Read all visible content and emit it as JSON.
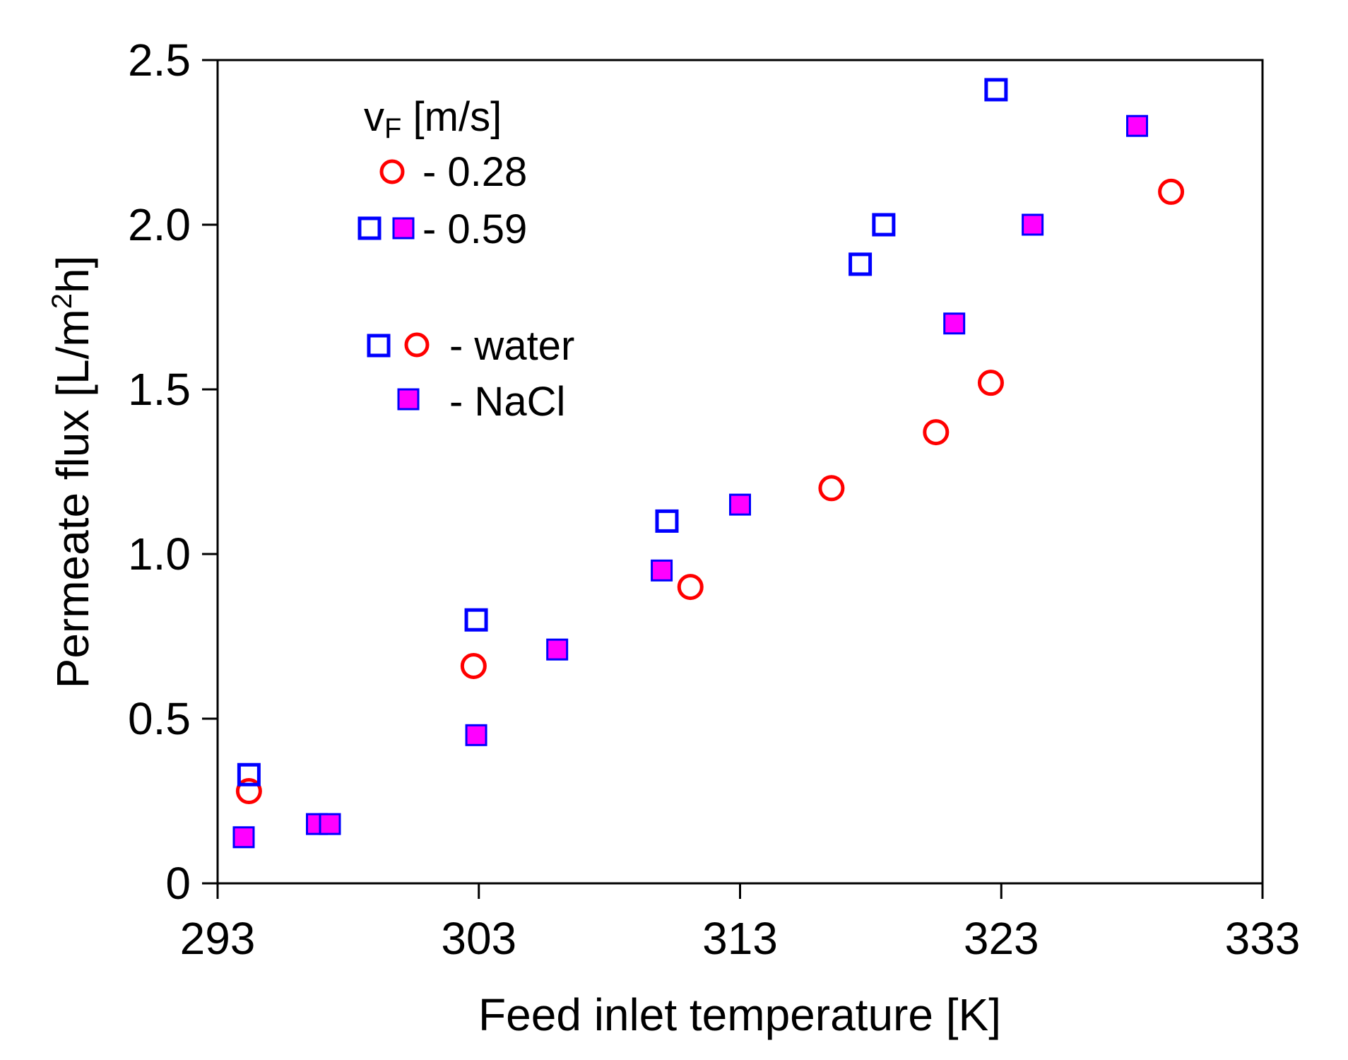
{
  "chart_data": {
    "type": "scatter",
    "xlabel": "Feed inlet temperature [K]",
    "ylabel_main": "Permeate flux [L/m",
    "ylabel_sup": "2",
    "ylabel_tail": "h]",
    "xlim": [
      293,
      333
    ],
    "ylim": [
      0,
      2.5
    ],
    "xticks": [
      293,
      303,
      313,
      323,
      333
    ],
    "xtick_labels": [
      "293",
      "303",
      "313",
      "323",
      "333"
    ],
    "yticks": [
      0,
      0.5,
      1.0,
      1.5,
      2.0,
      2.5
    ],
    "ytick_labels": [
      "0",
      "0.5",
      "1.0",
      "1.5",
      "2.0",
      "2.5"
    ],
    "legend": {
      "title_main": "v",
      "title_sub": "F",
      "title_tail": " [m/s]",
      "vel_028": "- 0.28",
      "vel_059": "- 0.59",
      "water": "- water",
      "nacl": "- NaCl"
    },
    "colors": {
      "red": "#ff0000",
      "blue": "#0000ff",
      "magenta": "#ff00ff"
    },
    "series": [
      {
        "name": "water, 0.28 m/s",
        "marker": "circle-open-red",
        "x": [
          294.2,
          302.8,
          311.1,
          316.5,
          320.5,
          322.6,
          329.5
        ],
        "y": [
          0.28,
          0.66,
          0.9,
          1.2,
          1.37,
          1.52,
          2.1
        ]
      },
      {
        "name": "water, 0.59 m/s",
        "marker": "square-open-blue",
        "x": [
          294.2,
          302.9,
          310.2,
          317.6,
          318.5,
          322.8
        ],
        "y": [
          0.33,
          0.8,
          1.1,
          1.88,
          2.0,
          2.41
        ]
      },
      {
        "name": "NaCl, 0.59 m/s",
        "marker": "square-filled-magenta",
        "x": [
          294.0,
          296.8,
          297.3,
          302.9,
          306.0,
          310.0,
          313.0,
          321.2,
          324.2,
          328.2
        ],
        "y": [
          0.14,
          0.18,
          0.18,
          0.45,
          0.71,
          0.95,
          1.15,
          1.7,
          2.0,
          2.3
        ]
      }
    ]
  }
}
